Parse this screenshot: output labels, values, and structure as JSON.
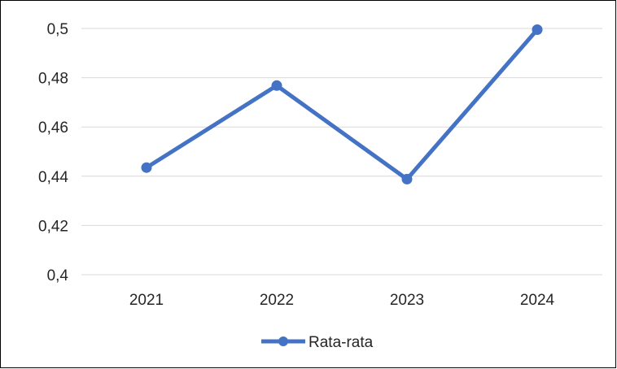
{
  "chart_data": {
    "type": "line",
    "categories": [
      "2021",
      "2022",
      "2023",
      "2024"
    ],
    "series": [
      {
        "name": "Rata-rata",
        "values": [
          0.4435,
          0.4768,
          0.4388,
          0.4995
        ],
        "color": "#4472c4"
      }
    ],
    "ylim": [
      0.4,
      0.5
    ],
    "yticks": [
      {
        "value": 0.5,
        "label": "0,5"
      },
      {
        "value": 0.48,
        "label": "0,48"
      },
      {
        "value": 0.46,
        "label": "0,46"
      },
      {
        "value": 0.44,
        "label": "0,44"
      },
      {
        "value": 0.42,
        "label": "0,42"
      },
      {
        "value": 0.4,
        "label": "0,4"
      }
    ],
    "grid": true,
    "gridColor": "#d9d9d9",
    "legend": "bottom"
  }
}
